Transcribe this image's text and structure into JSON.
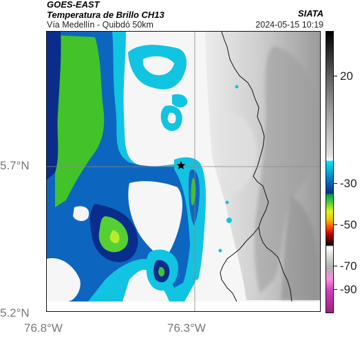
{
  "header": {
    "title": "GOES-EAST",
    "subtitle": "Temperatura de Brillo CH13",
    "location": "Vía Medellín - Quibdó 50km",
    "organization": "SIATA",
    "timestamp": "2024-05-15 10:19"
  },
  "axes": {
    "lat_labels": [
      "5.7°N",
      "5.2°N"
    ],
    "lon_labels": [
      "76.8°W",
      "76.3°W"
    ]
  },
  "colorbar": {
    "labels": [
      "20",
      "-30",
      "-50",
      "-70",
      "-90"
    ]
  },
  "map": {
    "marker": "star-icon",
    "colors": {
      "cold_deep": "#0a2d8c",
      "cold_mid": "#0a60b6",
      "cyan": "#00c8e6",
      "green": "#3ec82a",
      "yellow_green": "#b8ec2a",
      "white": "#f4f4f4",
      "terrain_light": "#d8d8d8",
      "terrain_mid": "#b4b4b4",
      "terrain_dark": "#8c8c8c"
    }
  }
}
